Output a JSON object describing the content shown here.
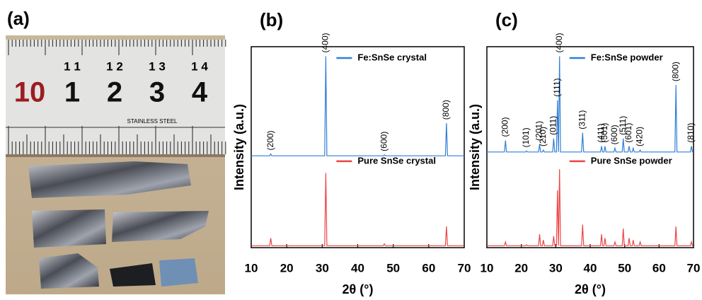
{
  "panel_a": {
    "label": "(a)",
    "ruler_labels": [
      "10",
      "1",
      "2",
      "3",
      "4"
    ],
    "ruler_sub_labels": [
      "1 1",
      "1 2",
      "1 3",
      "1 4"
    ],
    "brand": "STAINLESS STEEL"
  },
  "chart_data": [
    {
      "type": "line",
      "panel_label": "(b)",
      "xlabel": "2θ (°)",
      "ylabel": "Intensity (a.u.)",
      "xlim": [
        10,
        70
      ],
      "xticks": [
        10,
        20,
        30,
        40,
        50,
        60,
        70
      ],
      "ylim": [
        0,
        1.05
      ],
      "x": [
        10,
        15.2,
        15.5,
        15.8,
        30.7,
        31.0,
        31.3,
        47.2,
        47.5,
        47.8,
        64.7,
        65.0,
        65.3,
        70
      ],
      "series": [
        {
          "name": "Fe:SnSe crystal",
          "color": "#2f7fd6",
          "values": [
            0.48,
            0.48,
            0.49,
            0.48,
            0.48,
            1.0,
            0.48,
            0.48,
            0.485,
            0.48,
            0.48,
            0.65,
            0.48,
            0.48
          ]
        },
        {
          "name": "Pure SnSe crystal",
          "color": "#ec4545",
          "values": [
            0.01,
            0.01,
            0.05,
            0.01,
            0.01,
            0.39,
            0.01,
            0.01,
            0.02,
            0.01,
            0.01,
            0.11,
            0.01,
            0.01
          ]
        }
      ],
      "annotations": [
        {
          "label": "(200)",
          "x": 15.5
        },
        {
          "label": "(400)",
          "x": 31.0
        },
        {
          "label": "(600)",
          "x": 47.5
        },
        {
          "label": "(800)",
          "x": 65.0
        }
      ]
    },
    {
      "type": "line",
      "panel_label": "(c)",
      "xlabel": "2θ (°)",
      "ylabel": "Intensity (a.u.)",
      "xlim": [
        10,
        70
      ],
      "xticks": [
        10,
        20,
        30,
        40,
        50,
        60,
        70
      ],
      "ylim": [
        0,
        1.05
      ],
      "x": [
        10,
        15.1,
        15.4,
        15.7,
        21.2,
        21.5,
        21.8,
        25.0,
        25.3,
        25.6,
        26.1,
        26.4,
        26.7,
        29.1,
        29.4,
        29.7,
        30.2,
        30.5,
        30.8,
        31.1,
        31.4,
        37.5,
        37.8,
        38.1,
        43.0,
        43.3,
        43.6,
        44.0,
        44.3,
        44.6,
        46.9,
        47.2,
        47.5,
        49.3,
        49.6,
        49.9,
        51.0,
        51.3,
        51.6,
        52.2,
        52.5,
        52.8,
        54.2,
        54.5,
        54.8,
        64.6,
        64.9,
        65.2,
        69.1,
        69.4,
        69.7,
        70
      ],
      "series": [
        {
          "name": "Fe:SnSe powder",
          "color": "#2f7fd6",
          "values": [
            0.5,
            0.5,
            0.56,
            0.5,
            0.5,
            0.505,
            0.5,
            0.5,
            0.54,
            0.5,
            0.5,
            0.51,
            0.5,
            0.5,
            0.57,
            0.5,
            0.5,
            0.77,
            0.5,
            1.0,
            0.5,
            0.5,
            0.6,
            0.5,
            0.5,
            0.53,
            0.5,
            0.5,
            0.53,
            0.5,
            0.5,
            0.52,
            0.5,
            0.5,
            0.57,
            0.5,
            0.5,
            0.53,
            0.5,
            0.5,
            0.52,
            0.5,
            0.5,
            0.51,
            0.5,
            0.5,
            0.85,
            0.5,
            0.5,
            0.53,
            0.5,
            0.5
          ]
        },
        {
          "name": "Pure SnSe powder",
          "color": "#ec4545",
          "values": [
            0.01,
            0.01,
            0.03,
            0.01,
            0.01,
            0.015,
            0.01,
            0.01,
            0.07,
            0.01,
            0.01,
            0.04,
            0.01,
            0.01,
            0.06,
            0.01,
            0.01,
            0.3,
            0.01,
            0.41,
            0.01,
            0.01,
            0.12,
            0.01,
            0.01,
            0.07,
            0.01,
            0.01,
            0.05,
            0.01,
            0.01,
            0.03,
            0.01,
            0.01,
            0.1,
            0.01,
            0.01,
            0.05,
            0.01,
            0.01,
            0.04,
            0.01,
            0.01,
            0.03,
            0.01,
            0.01,
            0.11,
            0.01,
            0.01,
            0.03,
            0.01,
            0.01
          ]
        }
      ],
      "annotations": [
        {
          "label": "(200)",
          "x": 15.4
        },
        {
          "label": "(101)",
          "x": 21.5
        },
        {
          "label": "(201)",
          "x": 25.3
        },
        {
          "label": "(210)",
          "x": 26.4
        },
        {
          "label": "(011)",
          "x": 29.4
        },
        {
          "label": "(111)",
          "x": 30.5
        },
        {
          "label": "(400)",
          "x": 31.1
        },
        {
          "label": "(311)",
          "x": 37.8
        },
        {
          "label": "(411)",
          "x": 43.3
        },
        {
          "label": "(501)",
          "x": 44.3
        },
        {
          "label": "(600)",
          "x": 47.2
        },
        {
          "label": "(511)",
          "x": 49.6
        },
        {
          "label": "(601)",
          "x": 51.3
        },
        {
          "label": "(420)",
          "x": 54.5
        },
        {
          "label": "(800)",
          "x": 64.9
        },
        {
          "label": "(810)",
          "x": 69.4
        }
      ]
    }
  ]
}
